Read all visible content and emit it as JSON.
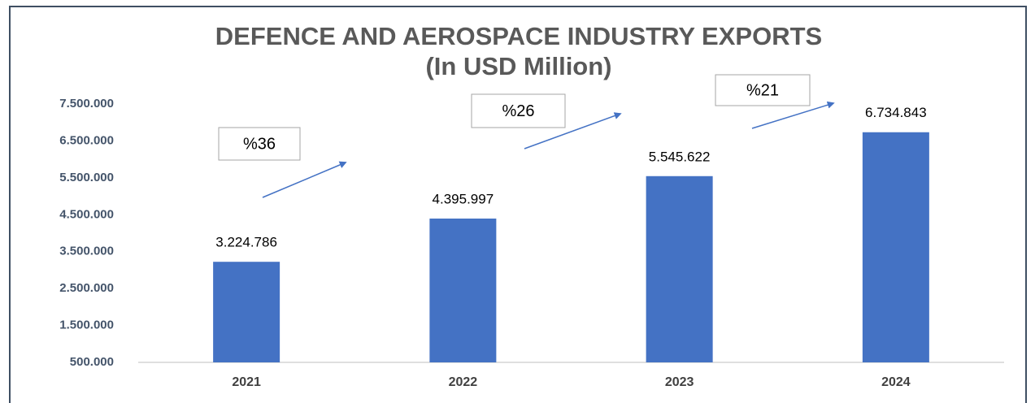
{
  "chart_data": {
    "type": "bar",
    "title": "DEFENCE AND AEROSPACE INDUSTRY EXPORTS",
    "subtitle": "(In USD Million)",
    "categories": [
      "2021",
      "2022",
      "2023",
      "2024"
    ],
    "values": [
      3224786,
      4395997,
      5545622,
      6734843
    ],
    "value_labels": [
      "3.224.786",
      "4.395.997",
      "5.545.622",
      "6.734.843"
    ],
    "color": "#4472c4",
    "ylim": [
      500000,
      7500000
    ],
    "yticks": [
      {
        "value": 500000,
        "label": "500.000"
      },
      {
        "value": 1500000,
        "label": "1.500.000"
      },
      {
        "value": 2500000,
        "label": "2.500.000"
      },
      {
        "value": 3500000,
        "label": "3.500.000"
      },
      {
        "value": 4500000,
        "label": "4.500.000"
      },
      {
        "value": 5500000,
        "label": "5.500.000"
      },
      {
        "value": 6500000,
        "label": "6.500.000"
      },
      {
        "value": 7500000,
        "label": "7.500.000"
      }
    ],
    "grid": false,
    "annotations": [
      "%36",
      "%26",
      "%21"
    ]
  }
}
